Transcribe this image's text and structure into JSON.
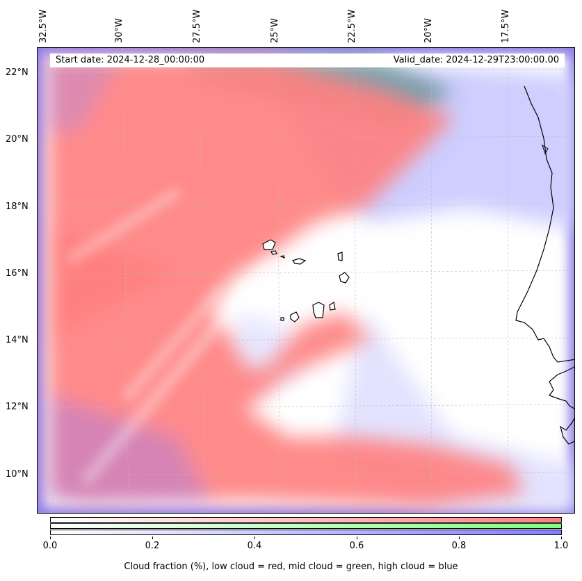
{
  "map": {
    "start_date": "Start date: 2024-12-28_00:00:00",
    "valid_date": "Valid_date: 2024-12-29T23:00:00.00",
    "lon_labels": [
      "32.5°W",
      "30°W",
      "27.5°W",
      "25°W",
      "22.5°W",
      "20°W",
      "17.5°W"
    ],
    "lat_labels": [
      "22°N",
      "20°N",
      "18°N",
      "16°N",
      "14°N",
      "12°N",
      "10°N"
    ],
    "colors": {
      "low_cloud": "#ff7f7f",
      "mid_cloud": "#7fff7f",
      "high_cloud": "#7f7fff",
      "coast": "#000000"
    }
  },
  "colorbar": {
    "ticks": [
      "0.0",
      "0.2",
      "0.4",
      "0.6",
      "0.8",
      "1.0"
    ],
    "label": "Cloud fraction (%), low cloud = red, mid cloud = green, high cloud = blue"
  }
}
